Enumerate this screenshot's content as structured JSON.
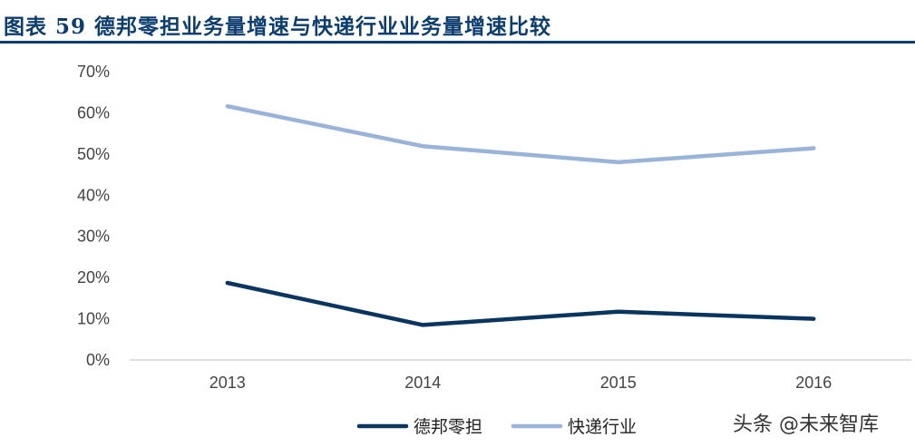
{
  "title": "图表 59   德邦零担业务量增速与快递行业业务量增速比较",
  "watermark": "头条 @未来智库",
  "chart_data": {
    "type": "line",
    "categories": [
      "2013",
      "2014",
      "2015",
      "2016"
    ],
    "y_ticks": [
      "0%",
      "10%",
      "20%",
      "30%",
      "40%",
      "50%",
      "60%",
      "70%"
    ],
    "ylim": [
      0,
      70
    ],
    "series": [
      {
        "name": "德邦零担",
        "values": [
          18.7,
          8.5,
          11.7,
          10.0
        ],
        "color": "#0b3561"
      },
      {
        "name": "快递行业",
        "values": [
          61.6,
          51.9,
          48.0,
          51.4
        ],
        "color": "#9ab3d8"
      }
    ],
    "legend_position": "bottom",
    "grid": false
  }
}
